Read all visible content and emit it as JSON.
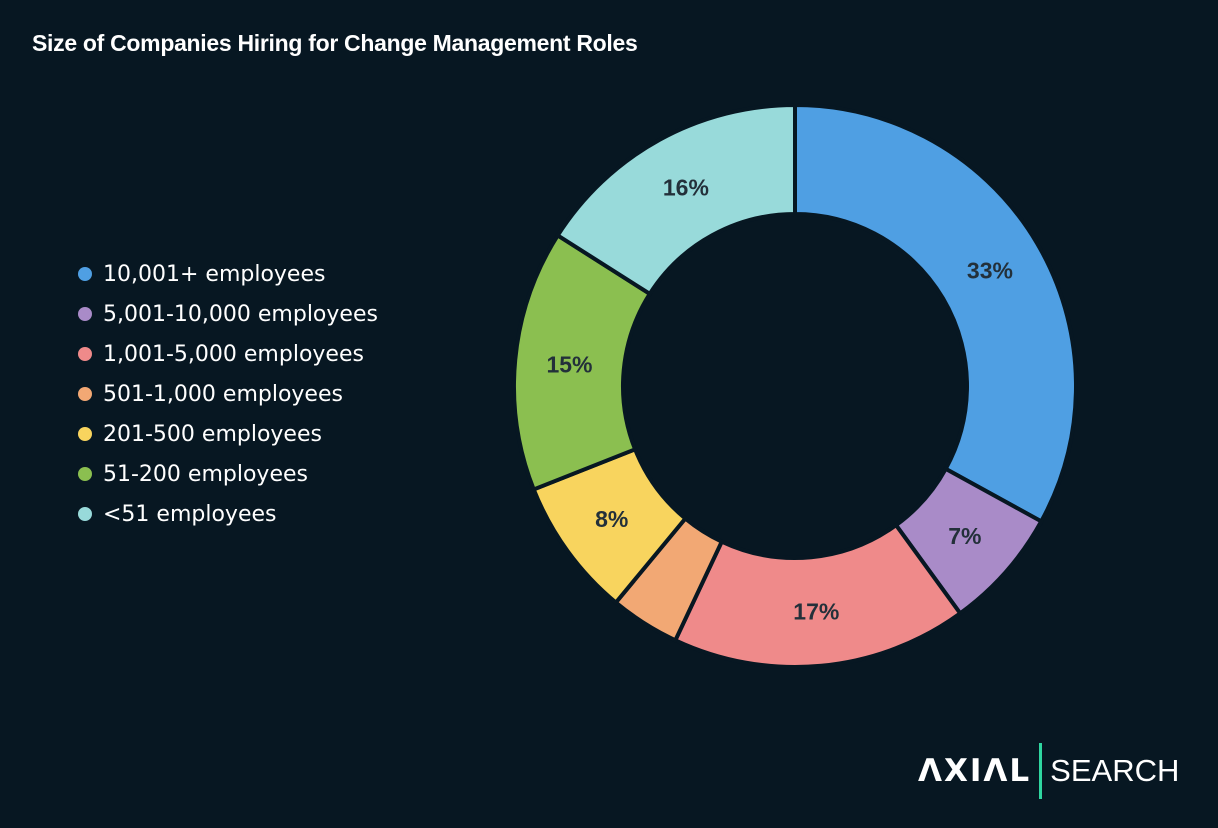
{
  "chart_data": {
    "type": "pie",
    "donut": true,
    "title": "Size of Companies Hiring for Change Management Roles",
    "categories": [
      "10,001+ employees",
      "5,001-10,000 employees",
      "1,001-5,000 employees",
      "501-1,000 employees",
      "201-500 employees",
      "51-200 employees",
      "<51 employees"
    ],
    "values": [
      33,
      7,
      17,
      4,
      8,
      15,
      16
    ],
    "data_labels": [
      "33%",
      "7%",
      "17%",
      "",
      "8%",
      "15%",
      "16%"
    ],
    "colors": [
      "#4f9fe3",
      "#a98bc8",
      "#ef8a8a",
      "#f2a874",
      "#f8d45e",
      "#8bbf50",
      "#98dada"
    ],
    "legend_position": "left"
  },
  "brand": {
    "logo_left": "ΛXIΛL",
    "logo_right": "SEARCH",
    "accent": "#2fd6a0"
  }
}
